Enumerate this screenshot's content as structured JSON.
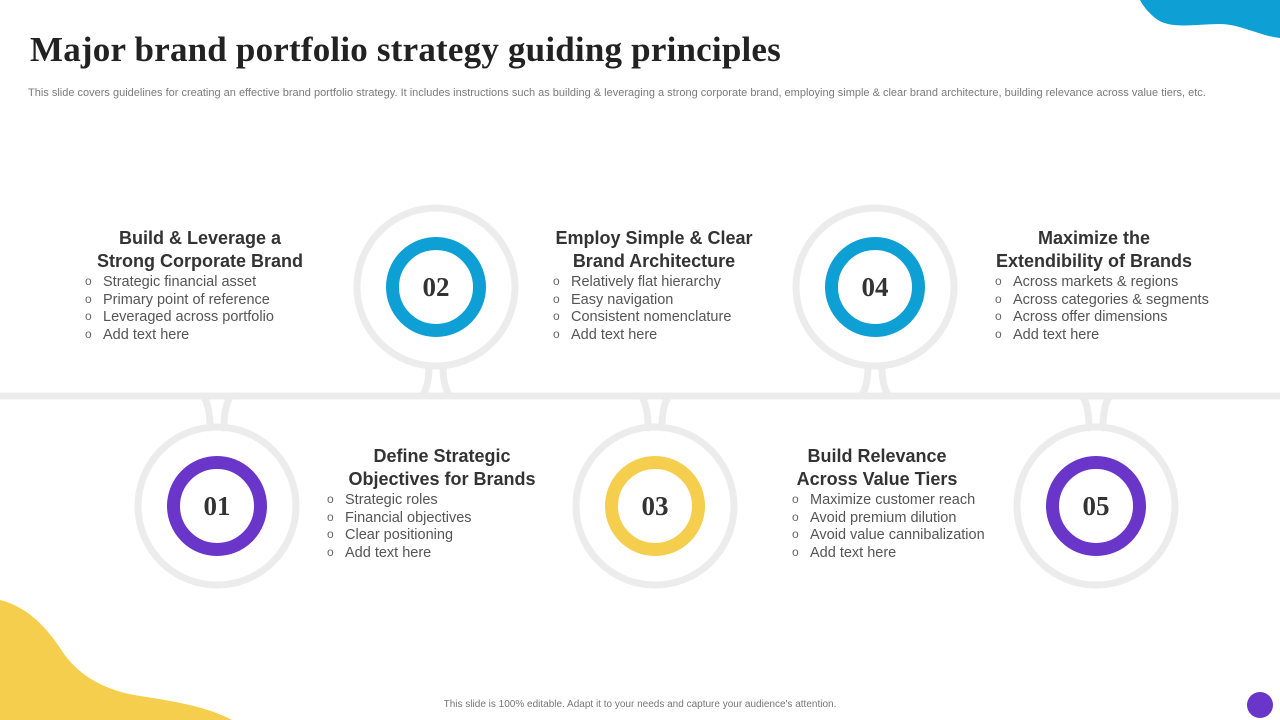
{
  "slide": {
    "title": "Major brand portfolio strategy guiding principles",
    "subtitle": "This slide covers guidelines for creating an effective  brand portfolio strategy. It includes instructions such as building & leveraging a strong corporate brand, employing simple & clear brand architecture, building relevance across value tiers, etc.",
    "footer": "This slide is 100% editable.  Adapt it to your needs and capture your audience's attention."
  },
  "colors": {
    "purple": "#6a35c9",
    "blue": "#0ea0d4",
    "yellow": "#f5ce4e",
    "track": "#ececec"
  },
  "principles": [
    {
      "number": "01",
      "color": "purple",
      "title_line1": "Build & Leverage a",
      "title_line2": "Strong Corporate Brand",
      "items": [
        "Strategic financial asset",
        "Primary point of reference",
        "Leveraged across portfolio",
        "Add text here"
      ]
    },
    {
      "number": "02",
      "color": "blue",
      "title_line1": "Define Strategic",
      "title_line2": "Objectives for Brands",
      "items": [
        "Strategic roles",
        "Financial objectives",
        "Clear positioning",
        "Add text here"
      ]
    },
    {
      "number": "03",
      "color": "yellow",
      "title_line1": "Employ Simple & Clear",
      "title_line2": "Brand Architecture",
      "items": [
        "Relatively flat hierarchy",
        "Easy navigation",
        "Consistent nomenclature",
        "Add text here"
      ]
    },
    {
      "number": "04",
      "color": "blue",
      "title_line1": "Build Relevance",
      "title_line2": "Across Value Tiers",
      "items": [
        "Maximize customer reach",
        "Avoid premium dilution",
        "Avoid value cannibalization",
        "Add text here"
      ]
    },
    {
      "number": "05",
      "color": "purple",
      "title_line1": "Maximize the",
      "title_line2": "Extendibility of Brands",
      "items": [
        "Across markets & regions",
        "Across categories & segments",
        "Across offer dimensions",
        "Add text here"
      ]
    }
  ]
}
